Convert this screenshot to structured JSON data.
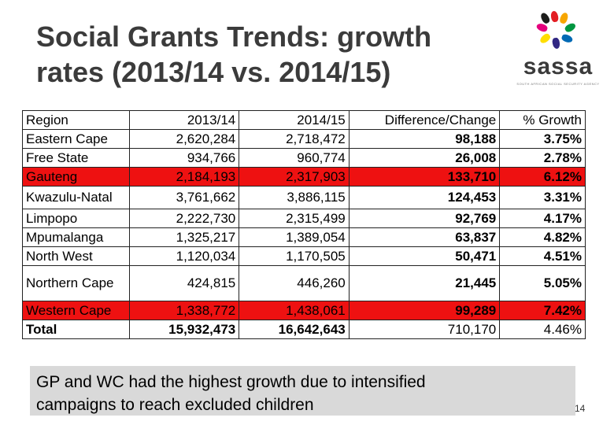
{
  "title": "Social Grants Trends: growth rates (2013/14 vs. 2014/15)",
  "logo": {
    "name": "sassa",
    "tagline": "SOUTH AFRICAN SOCIAL SECURITY AGENCY"
  },
  "table": {
    "headers": [
      "Region",
      "2013/14",
      "2014/15",
      "Difference/Change",
      "% Growth"
    ],
    "rows": [
      [
        "Eastern Cape",
        "2,620,284",
        "2,718,472",
        "98,188",
        "3.75%"
      ],
      [
        "Free State",
        "934,766",
        "960,774",
        "26,008",
        "2.78%"
      ],
      [
        "Gauteng",
        "2,184,193",
        "2,317,903",
        "133,710",
        "6.12%"
      ],
      [
        "Kwazulu-Natal",
        "3,761,662",
        "3,886,115",
        "124,453",
        "3.31%"
      ],
      [
        "Limpopo",
        "2,222,730",
        "2,315,499",
        "92,769",
        "4.17%"
      ],
      [
        "Mpumalanga",
        "1,325,217",
        "1,389,054",
        "63,837",
        "4.82%"
      ],
      [
        "North West",
        "1,120,034",
        "1,170,505",
        "50,471",
        "4.51%"
      ],
      [
        "Northern Cape",
        "424,815",
        "446,260",
        "21,445",
        "5.05%"
      ],
      [
        "Western Cape",
        "1,338,772",
        "1,438,061",
        "99,289",
        "7.42%"
      ],
      [
        "Total",
        "15,932,473",
        "16,642,643",
        "710,170",
        "4.46%"
      ]
    ],
    "highlight_color": "#ee1111"
  },
  "note": "GP and WC had the highest growth due to intensified campaigns to reach excluded children",
  "page_number": "14"
}
